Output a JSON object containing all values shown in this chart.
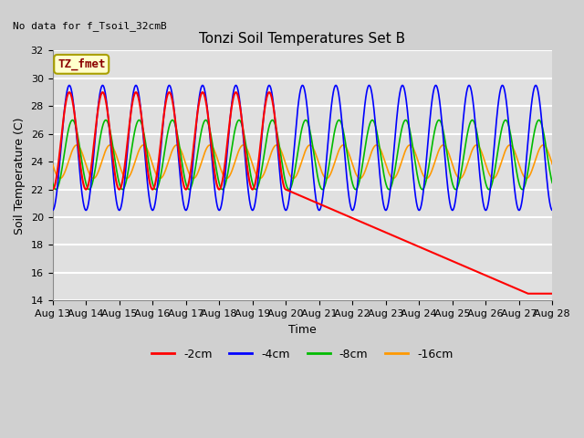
{
  "title": "Tonzi Soil Temperatures Set B",
  "xlabel": "Time",
  "ylabel": "Soil Temperature (C)",
  "no_data_text": "No data for f_Tsoil_32cmB",
  "legend_label_text": "TZ_fmet",
  "ylim": [
    14,
    32
  ],
  "yticks": [
    14,
    16,
    18,
    20,
    22,
    24,
    26,
    28,
    30,
    32
  ],
  "xtick_labels": [
    "Aug 13",
    "Aug 14",
    "Aug 15",
    "Aug 16",
    "Aug 17",
    "Aug 18",
    "Aug 19",
    "Aug 20",
    "Aug 21",
    "Aug 22",
    "Aug 23",
    "Aug 24",
    "Aug 25",
    "Aug 26",
    "Aug 27",
    "Aug 28"
  ],
  "series_colors": {
    "2cm": "#ff0000",
    "4cm": "#0000ff",
    "8cm": "#00bb00",
    "16cm": "#ff9900"
  },
  "fig_bg_color": "#d0d0d0",
  "plot_bg_color": "#e0e0e0",
  "grid_color": "#ffffff",
  "title_fontsize": 11,
  "axis_label_fontsize": 9,
  "tick_fontsize": 8
}
